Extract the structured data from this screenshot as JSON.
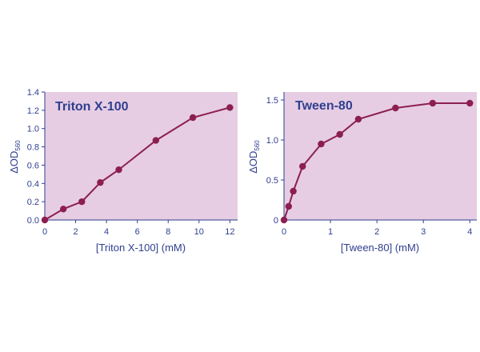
{
  "colors": {
    "plot_bg": "#e6cde3",
    "line": "#8c1f4f",
    "marker": "#8c1f4f",
    "text": "#2f3f8f",
    "axis": "#2f3f8f"
  },
  "chart_data": [
    {
      "type": "line",
      "title": "Triton X-100",
      "xlabel": "[Triton X-100] (mM)",
      "ylabel_main": "ΔOD",
      "ylabel_sub": "560",
      "xlim": [
        0,
        12.5
      ],
      "ylim": [
        0,
        1.4
      ],
      "xticks": [
        0,
        2,
        4,
        6,
        8,
        10,
        12
      ],
      "yticks": [
        0,
        0.2,
        0.4,
        0.6,
        0.8,
        1.0,
        1.2,
        1.4
      ],
      "xtick_labels": [
        "0",
        "2",
        "4",
        "6",
        "8",
        "10",
        "12"
      ],
      "ytick_labels": [
        "0.0",
        "0.2",
        "0.4",
        "0.6",
        "0.8",
        "1.0",
        "1.2",
        "1.4"
      ],
      "series": [
        {
          "x": [
            0,
            1.2,
            2.4,
            3.6,
            4.8,
            7.2,
            9.6,
            12
          ],
          "y": [
            0.0,
            0.12,
            0.2,
            0.41,
            0.55,
            0.87,
            1.12,
            1.23
          ]
        }
      ]
    },
    {
      "type": "line",
      "title": "Tween-80",
      "xlabel": "[Tween-80] (mM)",
      "ylabel_main": "ΔOD",
      "ylabel_sub": "560",
      "xlim": [
        0,
        4.15
      ],
      "ylim": [
        0,
        1.6
      ],
      "xticks": [
        0,
        1,
        2,
        3,
        4
      ],
      "yticks": [
        0,
        0.5,
        1.0,
        1.5
      ],
      "xtick_labels": [
        "0",
        "1",
        "2",
        "3",
        "4"
      ],
      "ytick_labels": [
        "0",
        "0.5",
        "1.0",
        "1.5"
      ],
      "series": [
        {
          "x": [
            0,
            0.1,
            0.2,
            0.4,
            0.8,
            1.2,
            1.6,
            2.4,
            3.2,
            4.0
          ],
          "y": [
            0.0,
            0.17,
            0.36,
            0.67,
            0.95,
            1.07,
            1.26,
            1.4,
            1.46,
            1.46
          ]
        }
      ]
    }
  ]
}
